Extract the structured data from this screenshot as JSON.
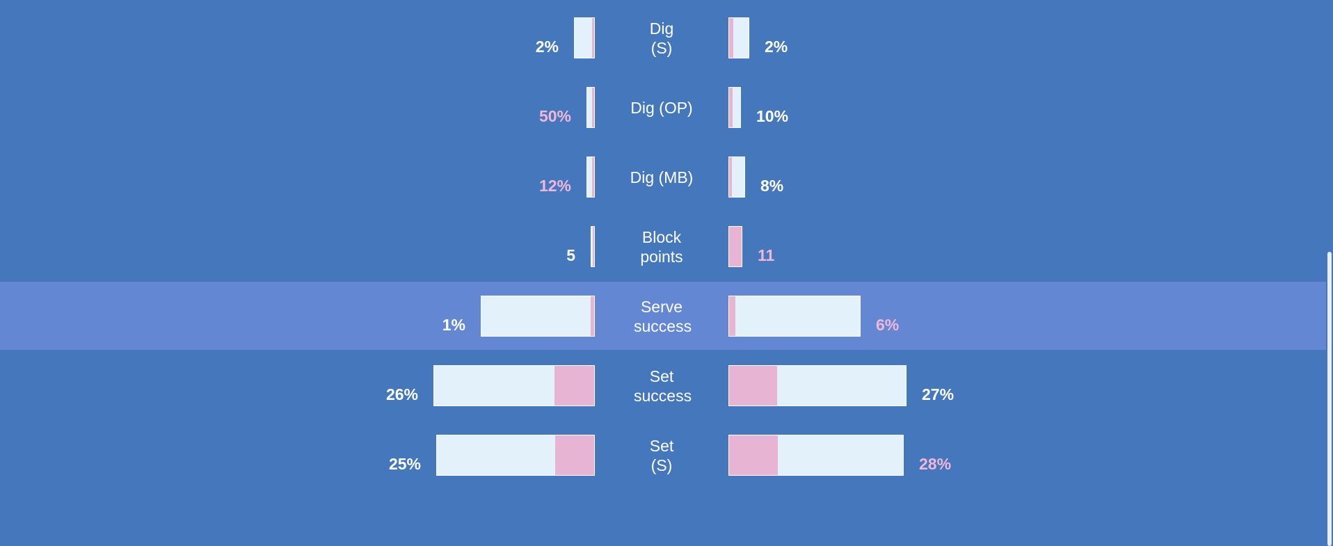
{
  "chart_data": {
    "type": "bar",
    "layout": "mirrored-horizontal",
    "highlighted_category": "Serve success",
    "categories": [
      "Dig (S)",
      "Dig (OP)",
      "Dig (MB)",
      "Block points",
      "Serve success",
      "Set success",
      "Set (S)"
    ],
    "left": [
      {
        "total": 30,
        "fill_fraction": 0.1,
        "label": "2%",
        "highlight": false
      },
      {
        "total": 12,
        "fill_fraction": 0.3,
        "label": "50%",
        "highlight": true
      },
      {
        "total": 12,
        "fill_fraction": 0.3,
        "label": "12%",
        "highlight": true
      },
      {
        "total": 6,
        "fill_fraction": 0.6,
        "label": "5",
        "highlight": false
      },
      {
        "total": 164,
        "fill_fraction": 0.03,
        "label": "1%",
        "highlight": false
      },
      {
        "total": 232,
        "fill_fraction": 0.25,
        "label": "26%",
        "highlight": false
      },
      {
        "total": 228,
        "fill_fraction": 0.25,
        "label": "25%",
        "highlight": false
      }
    ],
    "right": [
      {
        "total": 30,
        "fill_fraction": 0.2,
        "label": "2%",
        "highlight": false
      },
      {
        "total": 18,
        "fill_fraction": 0.3,
        "label": "10%",
        "highlight": false
      },
      {
        "total": 24,
        "fill_fraction": 0.2,
        "label": "8%",
        "highlight": false
      },
      {
        "total": 20,
        "fill_fraction": 1.0,
        "label": "11",
        "highlight": true
      },
      {
        "total": 190,
        "fill_fraction": 0.05,
        "label": "6%",
        "highlight": true
      },
      {
        "total": 256,
        "fill_fraction": 0.27,
        "label": "27%",
        "highlight": false
      },
      {
        "total": 252,
        "fill_fraction": 0.28,
        "label": "28%",
        "highlight": true
      }
    ],
    "colors": {
      "background": "#4477bb",
      "highlight_row": "#6387d3",
      "bar_empty": "#e3f1fa",
      "bar_fill": "#e8b4d3",
      "label_text": "#ffffff",
      "value_text": "#ffffff",
      "value_highlight_text": "#f2b6d8"
    }
  }
}
